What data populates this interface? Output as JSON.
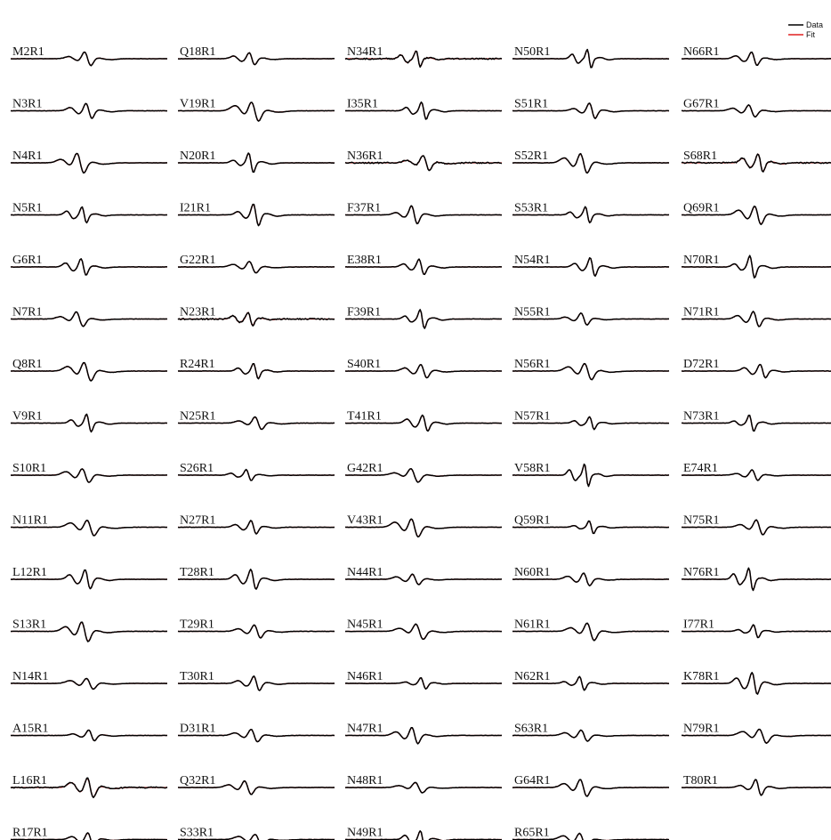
{
  "chart_data": {
    "type": "line",
    "legend": {
      "position": "top-right",
      "entries": [
        "Data",
        "Fit"
      ]
    },
    "series_colors": {
      "Data": "#000000",
      "Fit": "#e02020"
    },
    "grid": false,
    "axes_visible": false,
    "columns": [
      [
        "M2R1",
        "N3R1",
        "N4R1",
        "N5R1",
        "G6R1",
        "N7R1",
        "Q8R1",
        "V9R1",
        "S10R1",
        "N11R1",
        "L12R1",
        "S13R1",
        "N14R1",
        "A15R1",
        "L16R1",
        "R17R1"
      ],
      [
        "Q18R1",
        "V19R1",
        "N20R1",
        "I21R1",
        "G22R1",
        "N23R1",
        "R24R1",
        "N25R1",
        "S26R1",
        "N27R1",
        "T28R1",
        "T29R1",
        "T30R1",
        "D31R1",
        "Q32R1",
        "S33R1"
      ],
      [
        "N34R1",
        "I35R1",
        "N36R1",
        "F37R1",
        "E38R1",
        "F39R1",
        "S40R1",
        "T41R1",
        "G42R1",
        "V43R1",
        "N44R1",
        "N45R1",
        "N46R1",
        "N47R1",
        "N48R1",
        "N49R1"
      ],
      [
        "N50R1",
        "S51R1",
        "S52R1",
        "S53R1",
        "N54R1",
        "N55R1",
        "N56R1",
        "N57R1",
        "V58R1",
        "Q59R1",
        "N60R1",
        "N61R1",
        "N62R1",
        "S63R1",
        "G64R1",
        "R65R1"
      ],
      [
        "N66R1",
        "G67R1",
        "S68R1",
        "Q69R1",
        "N70R1",
        "N71R1",
        "D72R1",
        "N73R1",
        "E74R1",
        "N75R1",
        "N76R1",
        "I77R1",
        "K78R1",
        "N79R1",
        "T80R1"
      ]
    ]
  }
}
